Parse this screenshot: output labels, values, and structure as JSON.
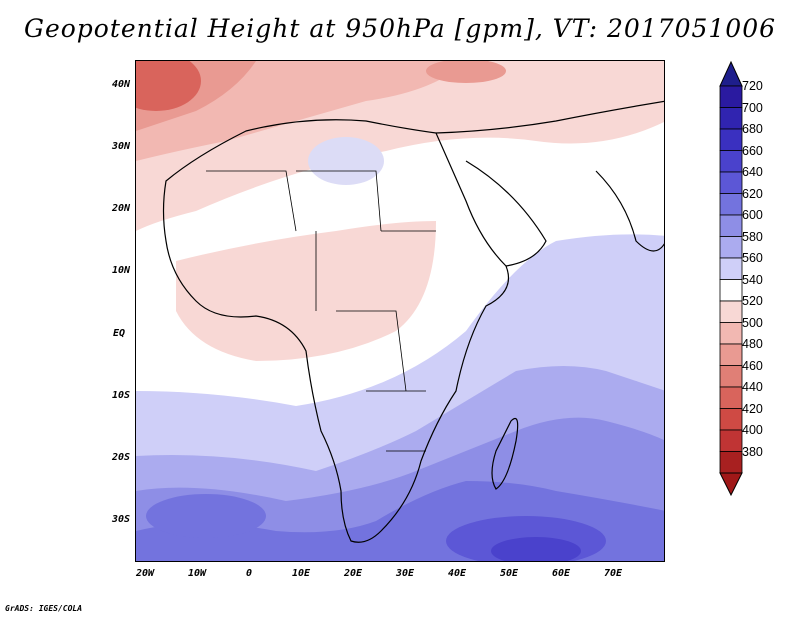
{
  "title": "Geopotential Height at 950hPa [gpm], VT: 2017051006",
  "credit": "GrADS: IGES/COLA",
  "map": {
    "lat_ticks": [
      "40N",
      "30N",
      "20N",
      "10N",
      "EQ",
      "10S",
      "20S",
      "30S"
    ],
    "lon_ticks": [
      "20W",
      "10W",
      "0",
      "10E",
      "20E",
      "30E",
      "40E",
      "50E",
      "60E",
      "70E"
    ],
    "land_fill": "#f4c9c4",
    "ocean_fill": "#ffffff"
  },
  "colorbar": {
    "levels": [
      720,
      700,
      680,
      660,
      640,
      620,
      600,
      580,
      560,
      540,
      520,
      500,
      480,
      460,
      440,
      420,
      400,
      380
    ],
    "colors": [
      "#2a1aa0",
      "#3024b0",
      "#3a30c0",
      "#4a42cc",
      "#5c57d6",
      "#7373de",
      "#8e8ee6",
      "#ababef",
      "#cfcff8",
      "#ffffff",
      "#f8d8d5",
      "#f2b8b2",
      "#e99a92",
      "#e07f76",
      "#d9645c",
      "#cf4a44",
      "#c03434",
      "#a82020"
    ],
    "top_arrow_color": "#1e1e8c",
    "bottom_arrow_color": "#a01818"
  }
}
